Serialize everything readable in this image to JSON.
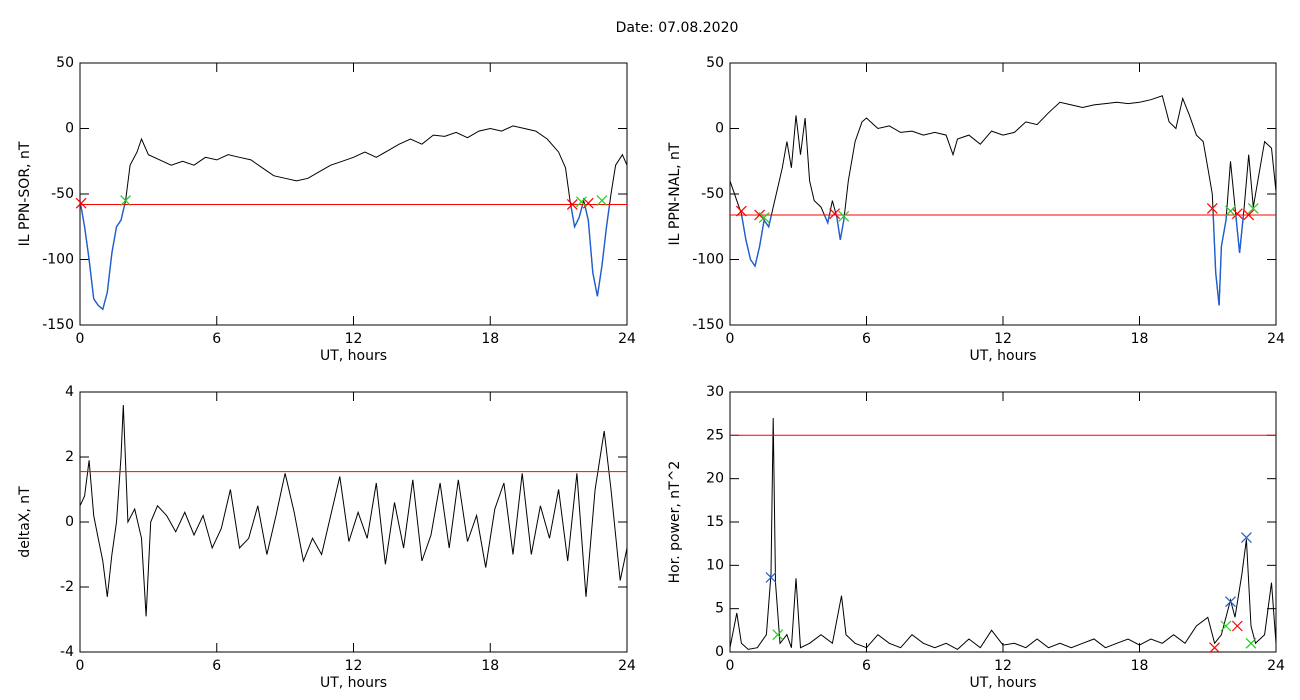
{
  "title": "Date:  07.08.2020",
  "chart_data": [
    {
      "type": "line",
      "ylabel": "IL PPN-SOR, nT",
      "xlabel": "UT, hours",
      "xlim": [
        0,
        24
      ],
      "xticks": [
        0,
        6,
        12,
        18,
        24
      ],
      "ylim": [
        -150,
        50
      ],
      "yticks": [
        -150,
        -100,
        -50,
        0,
        50
      ],
      "series": [
        {
          "color": "#000000",
          "below_color": "#1f5fd0",
          "x": [
            0,
            0.2,
            0.4,
            0.6,
            0.8,
            1.0,
            1.2,
            1.4,
            1.6,
            1.8,
            2.0,
            2.2,
            2.5,
            2.7,
            3,
            3.5,
            4,
            4.5,
            5,
            5.5,
            6,
            6.5,
            7,
            7.5,
            8,
            8.5,
            9,
            9.5,
            10,
            10.5,
            11,
            11.5,
            12,
            12.5,
            13,
            13.5,
            14,
            14.5,
            15,
            15.5,
            16,
            16.5,
            17,
            17.5,
            18,
            18.5,
            19,
            19.5,
            20,
            20.5,
            21,
            21.3,
            21.5,
            21.7,
            21.9,
            22.1,
            22.3,
            22.5,
            22.7,
            22.9,
            23.1,
            23.3,
            23.5,
            23.8,
            24
          ],
          "values": [
            -55,
            -75,
            -100,
            -130,
            -135,
            -138,
            -125,
            -95,
            -75,
            -70,
            -55,
            -28,
            -18,
            -8,
            -20,
            -24,
            -28,
            -25,
            -28,
            -22,
            -24,
            -20,
            -22,
            -24,
            -30,
            -36,
            -38,
            -40,
            -38,
            -33,
            -28,
            -25,
            -22,
            -18,
            -22,
            -17,
            -12,
            -8,
            -12,
            -5,
            -6,
            -3,
            -7,
            -2,
            0,
            -2,
            2,
            0,
            -2,
            -8,
            -18,
            -30,
            -55,
            -75,
            -68,
            -55,
            -70,
            -110,
            -128,
            -105,
            -75,
            -50,
            -28,
            -20,
            -28
          ]
        },
        {
          "color": "#ff0000",
          "x": [
            0,
            24
          ],
          "values": [
            -58,
            -58
          ]
        },
        {
          "color": "#ff0000",
          "marker": "x",
          "x": [
            0.05,
            21.6,
            22.3
          ],
          "values": [
            -57,
            -58,
            -57
          ]
        },
        {
          "color": "#22cc22",
          "marker": "x",
          "x": [
            2.0,
            22.0,
            22.9
          ],
          "values": [
            -55,
            -56,
            -55
          ]
        }
      ]
    },
    {
      "type": "line",
      "ylabel": "IL PPN-NAL, nT",
      "xlabel": "UT, hours",
      "xlim": [
        0,
        24
      ],
      "xticks": [
        0,
        6,
        12,
        18,
        24
      ],
      "ylim": [
        -150,
        50
      ],
      "yticks": [
        -150,
        -100,
        -50,
        0,
        50
      ],
      "series": [
        {
          "color": "#000000",
          "below_color": "#1f5fd0",
          "x": [
            0,
            0.3,
            0.5,
            0.7,
            0.9,
            1.1,
            1.3,
            1.5,
            1.7,
            1.9,
            2.1,
            2.3,
            2.5,
            2.7,
            2.9,
            3.1,
            3.3,
            3.5,
            3.7,
            4,
            4.3,
            4.5,
            4.7,
            4.85,
            5.0,
            5.2,
            5.5,
            5.8,
            6,
            6.5,
            7,
            7.5,
            8,
            8.5,
            9,
            9.5,
            9.8,
            10,
            10.5,
            11,
            11.5,
            12,
            12.5,
            13,
            13.5,
            14,
            14.5,
            15,
            15.5,
            16,
            16.5,
            17,
            17.5,
            18,
            18.5,
            19,
            19.3,
            19.6,
            19.9,
            20.2,
            20.5,
            20.8,
            21,
            21.2,
            21.35,
            21.5,
            21.6,
            21.8,
            22,
            22.2,
            22.4,
            22.6,
            22.8,
            23,
            23.2,
            23.5,
            23.8,
            24
          ],
          "values": [
            -40,
            -55,
            -65,
            -85,
            -100,
            -105,
            -90,
            -70,
            -75,
            -60,
            -45,
            -30,
            -10,
            -30,
            10,
            -20,
            8,
            -40,
            -55,
            -60,
            -72,
            -55,
            -68,
            -85,
            -70,
            -40,
            -10,
            5,
            8,
            0,
            2,
            -3,
            -2,
            -5,
            -3,
            -5,
            -20,
            -8,
            -5,
            -12,
            -2,
            -5,
            -3,
            5,
            3,
            12,
            20,
            18,
            16,
            18,
            19,
            20,
            19,
            20,
            22,
            25,
            5,
            0,
            23,
            10,
            -5,
            -10,
            -30,
            -50,
            -110,
            -135,
            -90,
            -70,
            -25,
            -60,
            -95,
            -60,
            -20,
            -60,
            -40,
            -10,
            -15,
            -48
          ]
        },
        {
          "color": "#ff0000",
          "x": [
            0,
            24
          ],
          "values": [
            -66,
            -66
          ]
        },
        {
          "color": "#ff0000",
          "marker": "x",
          "x": [
            0.5,
            1.3,
            4.6,
            21.2,
            22.3,
            22.8
          ],
          "values": [
            -63,
            -66,
            -65,
            -61,
            -65,
            -66
          ]
        },
        {
          "color": "#22cc22",
          "marker": "x",
          "x": [
            1.5,
            5.0,
            22.0,
            23.0
          ],
          "values": [
            -68,
            -67,
            -63,
            -61
          ]
        }
      ]
    },
    {
      "type": "line",
      "ylabel": "deltaX, nT",
      "xlabel": "UT, hours",
      "xlim": [
        0,
        24
      ],
      "xticks": [
        0,
        6,
        12,
        18,
        24
      ],
      "ylim": [
        -4,
        4
      ],
      "yticks": [
        -4,
        -2,
        0,
        2,
        4
      ],
      "series": [
        {
          "color": "#000000",
          "x": [
            0,
            0.2,
            0.4,
            0.6,
            0.8,
            1.0,
            1.2,
            1.4,
            1.6,
            1.8,
            1.9,
            2.1,
            2.4,
            2.7,
            2.9,
            3.1,
            3.4,
            3.8,
            4.2,
            4.6,
            5,
            5.4,
            5.8,
            6.2,
            6.6,
            7,
            7.4,
            7.8,
            8.2,
            8.6,
            9,
            9.4,
            9.8,
            10.2,
            10.6,
            11,
            11.4,
            11.8,
            12.2,
            12.6,
            13,
            13.4,
            13.8,
            14.2,
            14.6,
            15,
            15.4,
            15.8,
            16.2,
            16.6,
            17,
            17.4,
            17.8,
            18.2,
            18.6,
            19,
            19.4,
            19.8,
            20.2,
            20.6,
            21,
            21.4,
            21.8,
            22.2,
            22.6,
            23,
            23.3,
            23.7,
            24
          ],
          "values": [
            0.5,
            0.8,
            1.9,
            0.2,
            -0.5,
            -1.2,
            -2.3,
            -1.0,
            0,
            2.0,
            3.6,
            0,
            0.4,
            -0.5,
            -2.9,
            0,
            0.5,
            0.2,
            -0.3,
            0.3,
            -0.4,
            0.2,
            -0.8,
            -0.2,
            1.0,
            -0.8,
            -0.5,
            0.5,
            -1.0,
            0.2,
            1.5,
            0.3,
            -1.2,
            -0.5,
            -1.0,
            0.2,
            1.4,
            -0.6,
            0.3,
            -0.5,
            1.2,
            -1.3,
            0.6,
            -0.8,
            1.3,
            -1.2,
            -0.4,
            1.2,
            -0.8,
            1.3,
            -0.6,
            0.2,
            -1.4,
            0.4,
            1.2,
            -1.0,
            1.5,
            -1.0,
            0.5,
            -0.5,
            1.0,
            -1.2,
            1.5,
            -2.3,
            1.0,
            2.8,
            1.0,
            -1.8,
            -0.8
          ]
        },
        {
          "color": "#ff0000",
          "x": [
            0,
            24
          ],
          "values": [
            1.55,
            1.55
          ]
        }
      ]
    },
    {
      "type": "line",
      "ylabel": "Hor. power, nT^2",
      "xlabel": "UT, hours",
      "xlim": [
        0,
        24
      ],
      "xticks": [
        0,
        6,
        12,
        18,
        24
      ],
      "ylim": [
        0,
        30
      ],
      "yticks": [
        0,
        5,
        10,
        15,
        20,
        25,
        30
      ],
      "series": [
        {
          "color": "#000000",
          "x": [
            0,
            0.3,
            0.5,
            0.8,
            1.2,
            1.6,
            1.8,
            1.9,
            2.0,
            2.2,
            2.5,
            2.7,
            2.9,
            3.1,
            3.5,
            4,
            4.5,
            4.9,
            5.1,
            5.5,
            6,
            6.5,
            7,
            7.5,
            8,
            8.5,
            9,
            9.5,
            10,
            10.5,
            11,
            11.5,
            12,
            12.5,
            13,
            13.5,
            14,
            14.5,
            15,
            15.5,
            16,
            16.5,
            17,
            17.5,
            18,
            18.5,
            19,
            19.5,
            20,
            20.5,
            21,
            21.3,
            21.6,
            22,
            22.2,
            22.5,
            22.7,
            22.9,
            23.1,
            23.5,
            23.8,
            24
          ],
          "values": [
            0.5,
            4.5,
            1,
            0.3,
            0.5,
            2,
            9,
            27,
            8,
            1,
            2,
            0.5,
            8.5,
            0.5,
            1,
            2,
            1,
            6.5,
            2,
            1,
            0.5,
            2,
            1,
            0.5,
            2,
            1,
            0.5,
            1,
            0.3,
            1.5,
            0.5,
            2.5,
            0.8,
            1,
            0.5,
            1.5,
            0.5,
            1,
            0.5,
            1,
            1.5,
            0.5,
            1,
            1.5,
            0.8,
            1.5,
            1,
            2,
            1,
            3,
            4,
            1,
            2,
            6,
            4,
            9,
            13,
            3,
            1,
            2,
            8,
            1
          ]
        },
        {
          "color": "#ff0000",
          "x": [
            0,
            24
          ],
          "values": [
            25,
            25
          ]
        },
        {
          "color": "#1f5fd0",
          "marker": "x",
          "x": [
            1.8,
            22.0,
            22.7
          ],
          "values": [
            8.6,
            5.8,
            13.2
          ]
        },
        {
          "color": "#22cc22",
          "marker": "x",
          "x": [
            2.1,
            21.8,
            22.9
          ],
          "values": [
            2,
            3,
            1
          ]
        },
        {
          "color": "#ff0000",
          "marker": "x",
          "x": [
            21.3,
            22.3
          ],
          "values": [
            0.5,
            3
          ]
        }
      ]
    }
  ]
}
